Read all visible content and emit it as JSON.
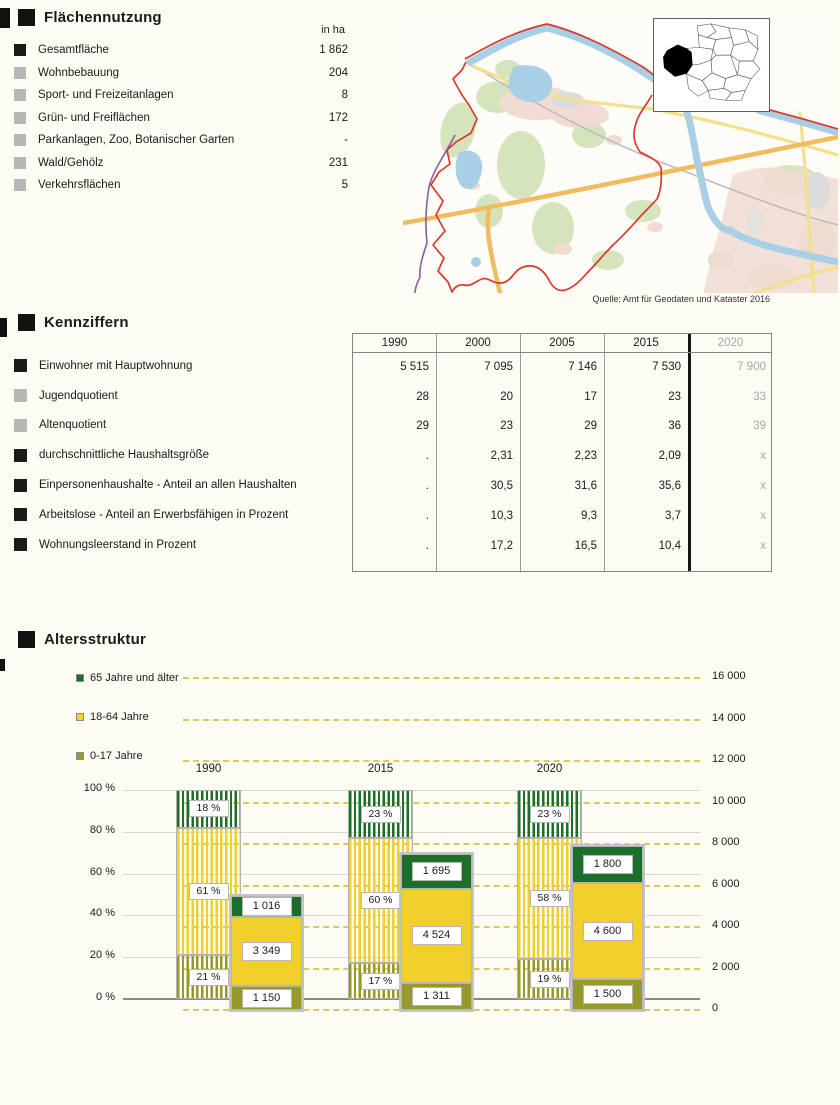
{
  "sections": {
    "flaechennutzung": {
      "title": "Flächennutzung",
      "unit_label": "in ha",
      "rows": [
        {
          "label": "Gesamtfläche",
          "value": "1 862",
          "marker": "black"
        },
        {
          "label": "Wohnbebauung",
          "value": "204",
          "marker": "gray"
        },
        {
          "label": "Sport- und Freizeitanlagen",
          "value": "8",
          "marker": "gray"
        },
        {
          "label": "Grün- und Freiflächen",
          "value": "172",
          "marker": "gray"
        },
        {
          "label": "Parkanlagen, Zoo, Botanischer Garten",
          "value": "-",
          "marker": "gray"
        },
        {
          "label": "Wald/Gehölz",
          "value": "231",
          "marker": "gray"
        },
        {
          "label": "Verkehrsflächen",
          "value": "5",
          "marker": "gray"
        }
      ]
    },
    "map": {
      "caption": "Quelle: Amt für Geodaten und Kataster 2016",
      "boundary_color": "#d63b30"
    },
    "kennziffern": {
      "title": "Kennziffern",
      "columns": [
        "1990",
        "2000",
        "2005",
        "2015",
        "2020"
      ],
      "forecast_column": "2020",
      "rows": [
        {
          "label": "Einwohner mit Hauptwohnung",
          "marker": "black",
          "values": [
            "5 515",
            "7 095",
            "7 146",
            "7 530",
            "7 900"
          ]
        },
        {
          "label": "Jugendquotient",
          "marker": "gray",
          "values": [
            "28",
            "20",
            "17",
            "23",
            "33"
          ]
        },
        {
          "label": "Altenquotient",
          "marker": "gray",
          "values": [
            "29",
            "23",
            "29",
            "36",
            "39"
          ]
        },
        {
          "label": "durchschnittliche Haushaltsgröße",
          "marker": "black",
          "values": [
            ".",
            "2,31",
            "2,23",
            "2,09",
            "x"
          ]
        },
        {
          "label": "Einpersonenhaushalte - Anteil an allen Haushalten",
          "marker": "black",
          "values": [
            ".",
            "30,5",
            "31,6",
            "35,6",
            "x"
          ]
        },
        {
          "label": "Arbeitslose - Anteil an Erwerbsfähigen in Prozent",
          "marker": "black",
          "values": [
            ".",
            "10,3",
            "9,3",
            "3,7",
            "x"
          ]
        },
        {
          "label": "Wohnungsleerstand in Prozent",
          "marker": "black",
          "values": [
            ".",
            "17,2",
            "16,5",
            "10,4",
            "x"
          ]
        }
      ]
    },
    "altersstruktur": {
      "title": "Altersstruktur"
    }
  },
  "chart_data": {
    "type": "bar",
    "subtype": "stacked-percent-and-absolute-pairs",
    "title": "Altersstruktur",
    "categories": [
      "1990",
      "2015",
      "2020"
    ],
    "segments_bottom_up": [
      "0-17 Jahre",
      "18-64 Jahre",
      "65 Jahre und älter"
    ],
    "segment_colors_bottom_up": [
      "#97992b",
      "#f2d02b",
      "#1c6f2b"
    ],
    "percent_values": [
      [
        21,
        61,
        18
      ],
      [
        17,
        60,
        23
      ],
      [
        19,
        58,
        23
      ]
    ],
    "percent_labels": [
      [
        "21 %",
        "61 %",
        "18 %"
      ],
      [
        "17 %",
        "60 %",
        "23 %"
      ],
      [
        "19 %",
        "58 %",
        "23 %"
      ]
    ],
    "absolute_values": [
      [
        1150,
        3349,
        1016
      ],
      [
        1311,
        4524,
        1695
      ],
      [
        1500,
        4600,
        1800
      ]
    ],
    "absolute_labels": [
      [
        "1 150",
        "3 349",
        "1 016"
      ],
      [
        "1 311",
        "4 524",
        "1 695"
      ],
      [
        "1 500",
        "4 600",
        "1 800"
      ]
    ],
    "legend": [
      {
        "label": "65 Jahre und älter",
        "color": "#1c6f2b"
      },
      {
        "label": "18-64 Jahre",
        "color": "#f2d02b"
      },
      {
        "label": "0-17 Jahre",
        "color": "#97992b"
      }
    ],
    "left_axis": {
      "ticks": [
        "100 %",
        "80 %",
        "60 %",
        "40 %",
        "20 %",
        "0 %"
      ],
      "tick_values": [
        100,
        80,
        60,
        40,
        20,
        0
      ],
      "min": 0,
      "max": 100
    },
    "right_axis": {
      "ticks": [
        "16 000",
        "14 000",
        "12 000",
        "10 000",
        "8 000",
        "6 000",
        "4 000",
        "2 000",
        "0"
      ],
      "tick_values": [
        16000,
        14000,
        12000,
        10000,
        8000,
        6000,
        4000,
        2000,
        0
      ],
      "min": 0,
      "max": 16000
    },
    "gridlines": {
      "percent_solid_gray": true,
      "absolute_dashed_yellow": true
    },
    "legend_position": "top-left"
  }
}
